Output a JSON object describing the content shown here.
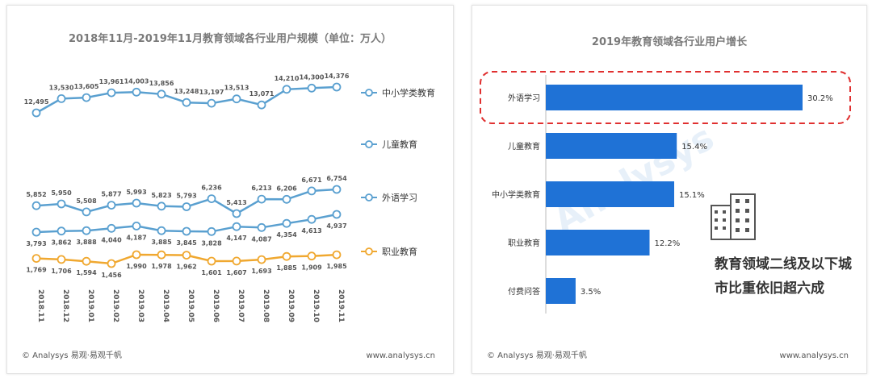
{
  "left_chart": {
    "title": "2018年11月-2019年11月教育领域各行业用户规模（单位：万人）",
    "footer_left": "© Analysys 易观·易观千帆",
    "footer_right": "www.analysys.cn"
  },
  "right_chart": {
    "title": "2019年教育领域各行业用户增长",
    "footer_left": "© Analysys 易观·易观千帆",
    "footer_right": "www.analysys.cn",
    "note_line1": "教育领域二线及以下城",
    "note_line2": "市比重依旧超六成"
  },
  "colors": {
    "series_blue": "#5aa0d0",
    "series_orange": "#f0a830",
    "bar_blue": "#1f72d6",
    "highlight_red": "#e03030"
  },
  "chart_data": [
    {
      "type": "line",
      "title": "2018年11月-2019年11月教育领域各行业用户规模（单位：万人）",
      "x": [
        "2018.11",
        "2018.12",
        "2019.01",
        "2019.02",
        "2019.03",
        "2019.04",
        "2019.05",
        "2019.06",
        "2019.07",
        "2019.08",
        "2019.09",
        "2019.10",
        "2019.11"
      ],
      "series": [
        {
          "name": "中小学类教育",
          "values": [
            12495,
            13530,
            13605,
            13961,
            14003,
            13856,
            13248,
            13197,
            13513,
            13071,
            14210,
            14300,
            14376
          ],
          "labels": [
            "12,495",
            "13,530",
            "13,605",
            "13,961",
            "14,003",
            "13,856",
            "13,248",
            "13,197",
            "13,513",
            "13,071",
            "14,210",
            "14,300",
            "14,376"
          ]
        },
        {
          "name": "儿童教育",
          "values": [
            3793,
            3862,
            3888,
            4040,
            4187,
            3885,
            3845,
            3828,
            4147,
            4087,
            4354,
            4613,
            4937
          ],
          "labels": [
            "3,793",
            "3,862",
            "3,888",
            "4,040",
            "4,187",
            "3,885",
            "3,845",
            "3,828",
            "4,147",
            "4,087",
            "4,354",
            "4,613",
            "4,937"
          ]
        },
        {
          "name": "外语学习",
          "values": [
            5852,
            5950,
            5508,
            5877,
            5993,
            5823,
            5793,
            6236,
            5413,
            6213,
            6206,
            6671,
            6754
          ],
          "labels": [
            "5,852",
            "5,950",
            "5,508",
            "5,877",
            "5,993",
            "5,823",
            "5,793",
            "6,236",
            "5,413",
            "6,213",
            "6,206",
            "6,671",
            "6,754"
          ]
        },
        {
          "name": "职业教育",
          "values": [
            1769,
            1706,
            1594,
            1456,
            1990,
            1978,
            1962,
            1601,
            1607,
            1693,
            1885,
            1909,
            1985
          ],
          "labels": [
            "1,769",
            "1,706",
            "1,594",
            "1,456",
            "1,990",
            "1,978",
            "1,962",
            "1,601",
            "1,607",
            "1,693",
            "1,885",
            "1,909",
            "1,985"
          ]
        }
      ],
      "legend": [
        "中小学类教育",
        "儿童教育",
        "外语学习",
        "职业教育"
      ]
    },
    {
      "type": "bar",
      "orientation": "horizontal",
      "title": "2019年教育领域各行业用户增长",
      "categories": [
        "外语学习",
        "儿童教育",
        "中小学类教育",
        "职业教育",
        "付费问答"
      ],
      "values": [
        30.2,
        15.4,
        15.1,
        12.2,
        3.5
      ],
      "labels": [
        "30.2%",
        "15.4%",
        "15.1%",
        "12.2%",
        "3.5%"
      ],
      "highlight": "外语学习"
    }
  ]
}
